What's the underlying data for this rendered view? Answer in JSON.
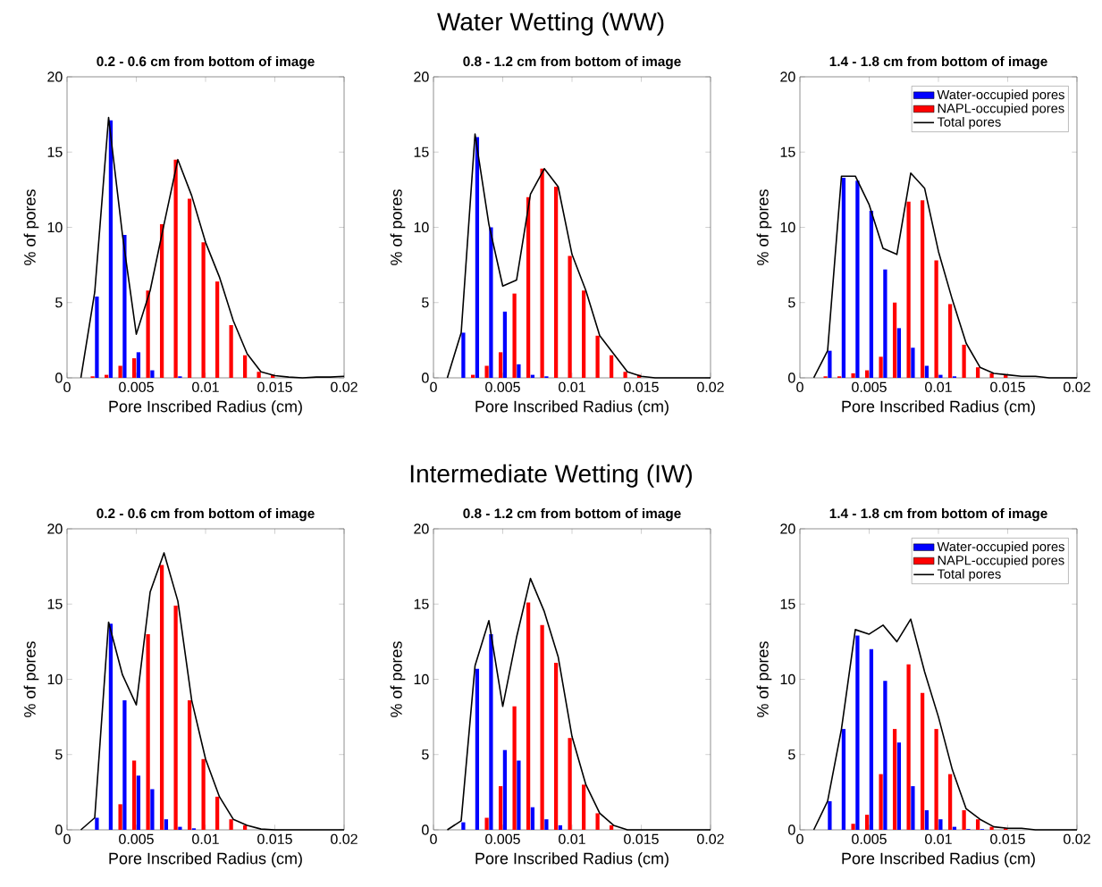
{
  "chart_data": [
    {
      "type": "bar",
      "title": "0.2 - 0.6 cm from bottom of image",
      "annotations": [
        "Water Wetting (WW)"
      ],
      "xlabel": "Pore Inscribed Radius (cm)",
      "ylabel": "% of pores",
      "xlim": [
        0,
        0.02
      ],
      "ylim": [
        0,
        20
      ],
      "xticks": [
        0,
        0.005,
        0.01,
        0.015,
        0.02
      ],
      "yticks": [
        0,
        5,
        10,
        15,
        20
      ],
      "x": [
        0.001,
        0.002,
        0.003,
        0.004,
        0.005,
        0.006,
        0.007,
        0.008,
        0.009,
        0.01,
        0.011,
        0.012,
        0.013,
        0.014,
        0.015,
        0.016,
        0.017,
        0.018,
        0.019,
        0.02
      ],
      "series": [
        {
          "color": "#0000ff",
          "values": [
            0,
            5.4,
            17.1,
            9.5,
            1.7,
            0.5,
            0,
            0.1,
            0,
            0,
            0,
            0,
            0,
            0,
            0,
            0,
            0,
            0,
            0,
            0
          ]
        },
        {
          "color": "#ff0000",
          "values": [
            0,
            0.1,
            0.2,
            0.8,
            1.3,
            5.8,
            10.2,
            14.5,
            11.9,
            9.0,
            6.4,
            3.5,
            1.5,
            0.4,
            0.2,
            0,
            0,
            0,
            0,
            0
          ]
        },
        {
          "type": "line",
          "color": "#000000",
          "values": [
            0,
            5.7,
            17.3,
            9.5,
            2.9,
            5.8,
            10.2,
            14.5,
            12.1,
            9.0,
            6.7,
            3.8,
            1.6,
            0.4,
            0.15,
            0.05,
            0,
            0.05,
            0.05,
            0.1
          ]
        }
      ]
    },
    {
      "type": "bar",
      "title": "0.8 - 1.2 cm from bottom of image",
      "xlabel": "Pore Inscribed Radius (cm)",
      "ylabel": "% of pores",
      "xlim": [
        0,
        0.02
      ],
      "ylim": [
        0,
        20
      ],
      "xticks": [
        0,
        0.005,
        0.01,
        0.015,
        0.02
      ],
      "yticks": [
        0,
        5,
        10,
        15,
        20
      ],
      "x": [
        0.001,
        0.002,
        0.003,
        0.004,
        0.005,
        0.006,
        0.007,
        0.008,
        0.009,
        0.01,
        0.011,
        0.012,
        0.013,
        0.014,
        0.015,
        0.016,
        0.017,
        0.018,
        0.019,
        0.02
      ],
      "series": [
        {
          "color": "#0000ff",
          "values": [
            0,
            3.0,
            16.0,
            10.0,
            4.4,
            0.9,
            0.2,
            0.1,
            0,
            0,
            0,
            0,
            0,
            0,
            0,
            0,
            0,
            0,
            0,
            0
          ]
        },
        {
          "color": "#ff0000",
          "values": [
            0,
            0,
            0.2,
            0.8,
            1.7,
            5.6,
            12.0,
            13.9,
            12.7,
            8.1,
            5.8,
            2.8,
            1.5,
            0.4,
            0.2,
            0,
            0,
            0,
            0,
            0
          ]
        },
        {
          "type": "line",
          "color": "#000000",
          "values": [
            0,
            3.0,
            16.2,
            10.2,
            6.1,
            6.5,
            12.2,
            13.9,
            12.7,
            8.2,
            5.8,
            2.8,
            1.6,
            0.4,
            0.1,
            0,
            0,
            0,
            0,
            0
          ]
        }
      ]
    },
    {
      "type": "bar",
      "title": "1.4 - 1.8 cm from bottom of image",
      "xlabel": "Pore Inscribed Radius (cm)",
      "ylabel": "% of pores",
      "xlim": [
        0,
        0.02
      ],
      "ylim": [
        0,
        20
      ],
      "xticks": [
        0,
        0.005,
        0.01,
        0.015,
        0.02
      ],
      "yticks": [
        0,
        5,
        10,
        15,
        20
      ],
      "legend": "top right",
      "x": [
        0.001,
        0.002,
        0.003,
        0.004,
        0.005,
        0.006,
        0.007,
        0.008,
        0.009,
        0.01,
        0.011,
        0.012,
        0.013,
        0.014,
        0.015,
        0.016,
        0.017,
        0.018,
        0.019,
        0.02
      ],
      "series": [
        {
          "name": "Water-occupied pores",
          "color": "#0000ff",
          "values": [
            0,
            1.8,
            13.3,
            13.1,
            11.1,
            7.2,
            3.3,
            2.0,
            0.8,
            0.2,
            0.1,
            0,
            0,
            0,
            0,
            0,
            0,
            0,
            0,
            0
          ]
        },
        {
          "name": "NAPL-occupied pores",
          "color": "#ff0000",
          "values": [
            0,
            0.1,
            0.1,
            0.3,
            0.5,
            1.4,
            5.0,
            11.7,
            11.8,
            7.8,
            4.9,
            2.2,
            0.7,
            0.3,
            0.2,
            0,
            0,
            0,
            0,
            0
          ]
        },
        {
          "name": "Total pores",
          "type": "line",
          "color": "#000000",
          "values": [
            0,
            1.8,
            13.4,
            13.4,
            11.5,
            8.6,
            8.2,
            13.6,
            12.6,
            8.4,
            5.2,
            2.3,
            0.7,
            0.3,
            0.2,
            0.1,
            0.1,
            0,
            0,
            0
          ]
        }
      ]
    },
    {
      "type": "bar",
      "title": "0.2 - 0.6 cm from bottom of image",
      "annotations": [
        "Intermediate Wetting (IW)"
      ],
      "xlabel": "Pore Inscribed Radius (cm)",
      "ylabel": "% of pores",
      "xlim": [
        0,
        0.02
      ],
      "ylim": [
        0,
        20
      ],
      "xticks": [
        0,
        0.005,
        0.01,
        0.015,
        0.02
      ],
      "yticks": [
        0,
        5,
        10,
        15,
        20
      ],
      "x": [
        0.001,
        0.002,
        0.003,
        0.004,
        0.005,
        0.006,
        0.007,
        0.008,
        0.009,
        0.01,
        0.011,
        0.012,
        0.013,
        0.014,
        0.015,
        0.016,
        0.017,
        0.018,
        0.019,
        0.02
      ],
      "series": [
        {
          "color": "#0000ff",
          "values": [
            0,
            0.8,
            13.7,
            8.6,
            3.6,
            2.7,
            0.7,
            0.2,
            0.1,
            0,
            0,
            0,
            0,
            0,
            0,
            0,
            0,
            0,
            0,
            0
          ]
        },
        {
          "color": "#ff0000",
          "values": [
            0,
            0,
            0,
            1.7,
            4.6,
            13.0,
            17.6,
            14.9,
            8.6,
            4.7,
            2.2,
            0.7,
            0.3,
            0,
            0,
            0,
            0,
            0,
            0,
            0
          ]
        },
        {
          "type": "line",
          "color": "#000000",
          "values": [
            0,
            0.8,
            13.8,
            10.3,
            8.3,
            15.8,
            18.4,
            15.2,
            8.6,
            4.7,
            2.2,
            0.7,
            0.3,
            0.05,
            0,
            0,
            0,
            0,
            0,
            0
          ]
        }
      ]
    },
    {
      "type": "bar",
      "title": "0.8 - 1.2 cm from bottom of image",
      "xlabel": "Pore Inscribed Radius (cm)",
      "ylabel": "% of pores",
      "xlim": [
        0,
        0.02
      ],
      "ylim": [
        0,
        20
      ],
      "xticks": [
        0,
        0.005,
        0.01,
        0.015,
        0.02
      ],
      "yticks": [
        0,
        5,
        10,
        15,
        20
      ],
      "x": [
        0.001,
        0.002,
        0.003,
        0.004,
        0.005,
        0.006,
        0.007,
        0.008,
        0.009,
        0.01,
        0.011,
        0.012,
        0.013,
        0.014,
        0.015,
        0.016,
        0.017,
        0.018,
        0.019,
        0.02
      ],
      "series": [
        {
          "color": "#0000ff",
          "values": [
            0,
            0.5,
            10.7,
            13.0,
            5.3,
            4.6,
            1.5,
            0.7,
            0.3,
            0,
            0,
            0,
            0,
            0,
            0,
            0,
            0,
            0,
            0,
            0
          ]
        },
        {
          "color": "#ff0000",
          "values": [
            0,
            0,
            0,
            0.8,
            2.9,
            8.2,
            15.1,
            13.6,
            11.1,
            6.1,
            3.0,
            1.1,
            0.3,
            0,
            0,
            0,
            0,
            0,
            0,
            0
          ]
        },
        {
          "type": "line",
          "color": "#000000",
          "values": [
            0,
            0.6,
            10.9,
            13.9,
            8.2,
            12.8,
            16.7,
            14.5,
            11.5,
            6.2,
            3.0,
            1.1,
            0.3,
            0,
            0,
            0,
            0,
            0,
            0,
            0
          ]
        }
      ]
    },
    {
      "type": "bar",
      "title": "1.4 - 1.8 cm from bottom of image",
      "xlabel": "Pore Inscribed Radius (cm)",
      "ylabel": "% of pores",
      "xlim": [
        0,
        0.02
      ],
      "ylim": [
        0,
        20
      ],
      "xticks": [
        0,
        0.005,
        0.01,
        0.015,
        0.02
      ],
      "yticks": [
        0,
        5,
        10,
        15,
        20
      ],
      "legend": "top right",
      "x": [
        0.001,
        0.002,
        0.003,
        0.004,
        0.005,
        0.006,
        0.007,
        0.008,
        0.009,
        0.01,
        0.011,
        0.012,
        0.013,
        0.014,
        0.015,
        0.016,
        0.017,
        0.018,
        0.019,
        0.02
      ],
      "series": [
        {
          "name": "Water-occupied pores",
          "color": "#0000ff",
          "values": [
            0,
            1.9,
            6.7,
            12.9,
            12.0,
            9.9,
            5.8,
            2.9,
            1.3,
            0.7,
            0.2,
            0.05,
            0.05,
            0,
            0,
            0,
            0,
            0,
            0,
            0
          ]
        },
        {
          "name": "NAPL-occupied pores",
          "color": "#ff0000",
          "values": [
            0,
            0,
            0,
            0.4,
            1.0,
            3.7,
            6.7,
            11.0,
            9.1,
            6.7,
            3.7,
            1.3,
            0.7,
            0.2,
            0.1,
            0,
            0,
            0,
            0,
            0
          ]
        },
        {
          "name": "Total pores",
          "type": "line",
          "color": "#000000",
          "values": [
            0,
            1.9,
            6.7,
            13.3,
            13.0,
            13.6,
            12.5,
            14.0,
            10.5,
            7.5,
            4.0,
            1.4,
            0.7,
            0.2,
            0.1,
            0.1,
            0,
            0,
            0,
            0
          ]
        }
      ]
    }
  ]
}
